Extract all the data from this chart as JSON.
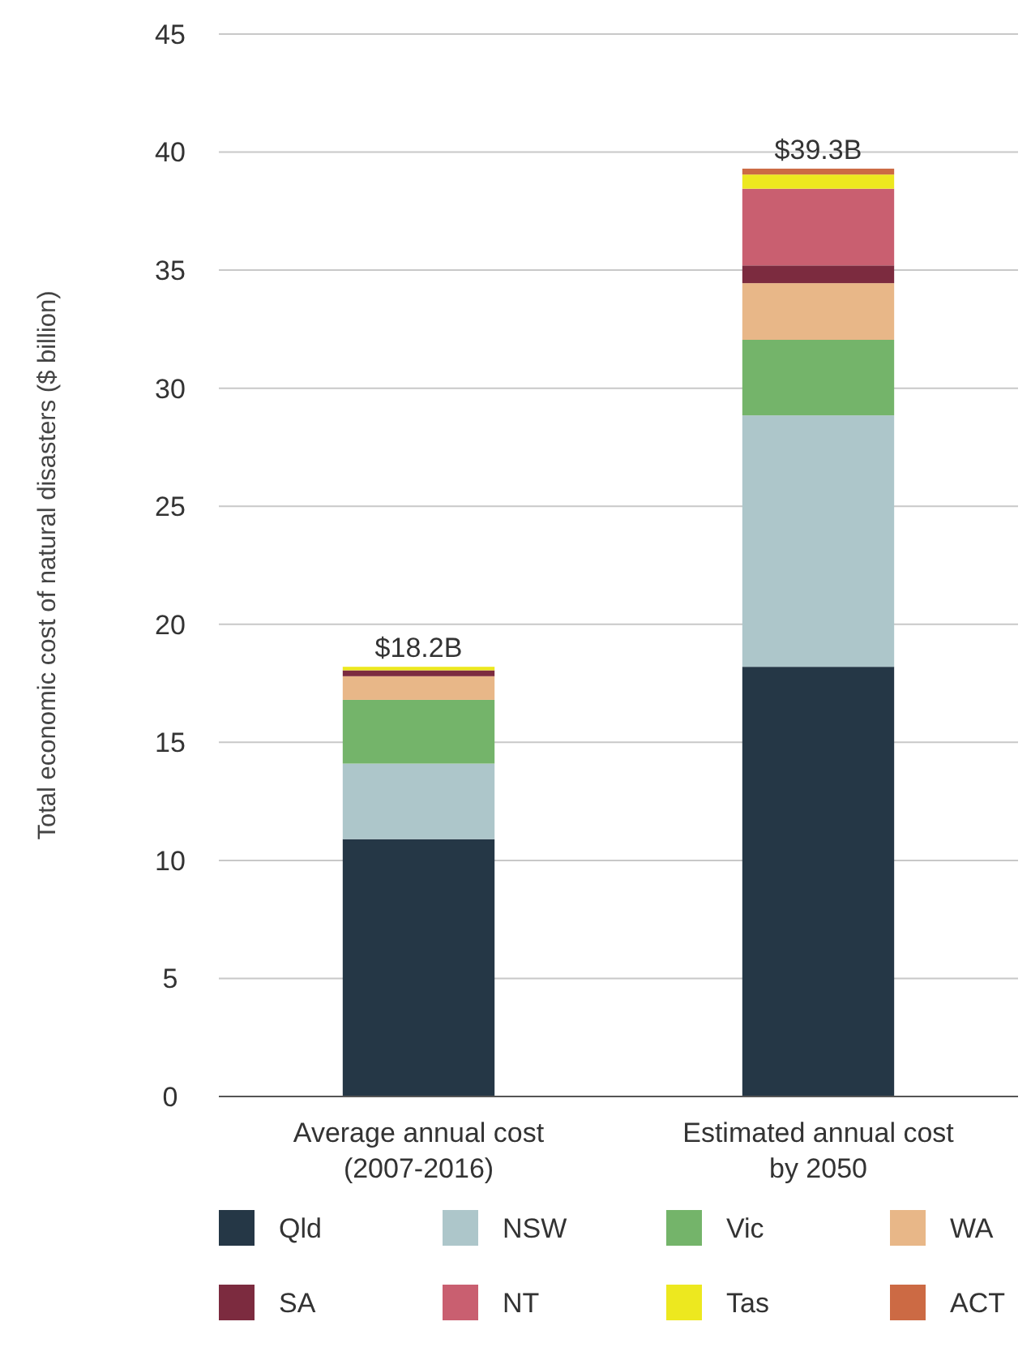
{
  "chart_data": {
    "type": "bar",
    "stacked": true,
    "ylabel": "Total economic cost of natural disasters ($ billion)",
    "categories": [
      "Average annual cost (2007-2016)",
      "Estimated annual cost by 2050"
    ],
    "series": [
      {
        "name": "Qld",
        "color": "#253746",
        "values": [
          10.9,
          18.2
        ]
      },
      {
        "name": "NSW",
        "color": "#adc6ca",
        "values": [
          3.2,
          10.65
        ]
      },
      {
        "name": "Vic",
        "color": "#74b46a",
        "values": [
          2.7,
          3.2
        ]
      },
      {
        "name": "WA",
        "color": "#e8b788",
        "values": [
          1.0,
          2.4
        ]
      },
      {
        "name": "SA",
        "color": "#7c2b3f",
        "values": [
          0.25,
          0.75
        ]
      },
      {
        "name": "NT",
        "color": "#c95f70",
        "values": [
          0,
          3.25
        ]
      },
      {
        "name": "Tas",
        "color": "#ede81f",
        "values": [
          0.15,
          0.6
        ]
      },
      {
        "name": "ACT",
        "color": "#cc6a44",
        "values": [
          0,
          0.25
        ]
      }
    ],
    "totals": [
      "$18.2B",
      "$39.3B"
    ],
    "ylim": [
      0,
      45
    ],
    "yticks": [
      0,
      5,
      10,
      15,
      20,
      25,
      30,
      35,
      40,
      45
    ],
    "grid": "y",
    "legend": "bottom"
  }
}
